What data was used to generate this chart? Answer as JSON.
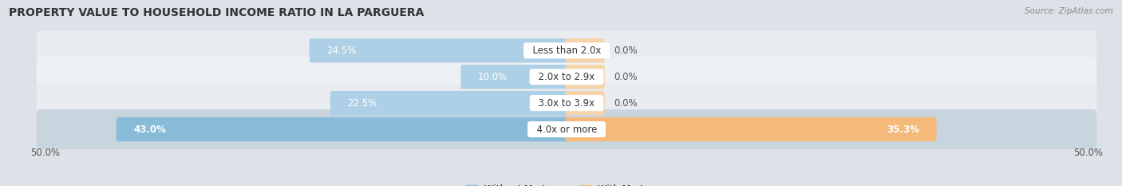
{
  "title": "PROPERTY VALUE TO HOUSEHOLD INCOME RATIO IN LA PARGUERA",
  "source": "Source: ZipAtlas.com",
  "categories": [
    "Less than 2.0x",
    "2.0x to 2.9x",
    "3.0x to 3.9x",
    "4.0x or more"
  ],
  "without_mortgage": [
    24.5,
    10.0,
    22.5,
    43.0
  ],
  "with_mortgage": [
    0.0,
    0.0,
    0.0,
    35.3
  ],
  "axis_limit": 50.0,
  "bar_color_blue": "#88bbd8",
  "bar_color_blue_light": "#aed0e6",
  "bar_color_orange": "#f5b97a",
  "bar_color_orange_light": "#f5d4aa",
  "bg_color_dark": "#d8d8d8",
  "bg_color_light": "#e8e8e8",
  "row_bg_colors": [
    "#e2e6ea",
    "#eaeef1",
    "#e2e6ea",
    "#d0d8e0"
  ],
  "title_fontsize": 10,
  "tick_fontsize": 8.5,
  "label_fontsize": 8.5,
  "cat_fontsize": 8.5,
  "legend_fontsize": 8.5
}
